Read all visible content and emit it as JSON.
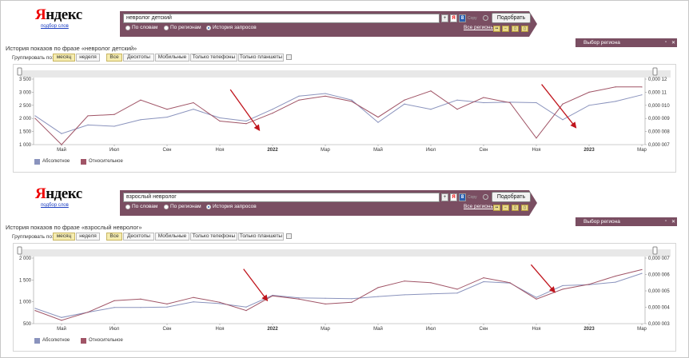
{
  "colors": {
    "absolute": "#8a93bd",
    "relative": "#a05466",
    "header": "#7a4e62",
    "arrow": "#c0141c"
  },
  "logo": {
    "first": "Я",
    "rest": "ндекс",
    "sub": "подбор слов"
  },
  "search": {
    "copy_label": "Copy",
    "submit_label": "Подобрать",
    "radios": [
      "По словам",
      "По регионам",
      "История запросов"
    ],
    "all_regions": "Все регионы"
  },
  "group": {
    "label": "Группировать по:",
    "period": [
      "месяц",
      "неделя"
    ],
    "devices": [
      "Все",
      "Десктопы",
      "Мобильные",
      "Только телефоны",
      "Только планшеты"
    ]
  },
  "region_box": {
    "title": "Выбор региона"
  },
  "legend": {
    "absolute": "Абсолютное",
    "relative": "Относительное"
  },
  "panels": [
    {
      "query": "невролог детский",
      "title": "История показов по фразе «невролог детский»"
    },
    {
      "query": "взрослый невролог",
      "title": "История показов по фразе «взрослый невролог»"
    }
  ],
  "chart_data": [
    {
      "type": "line",
      "title": "История показов по фразе «невролог детский»",
      "x_labels": [
        "Май",
        "Июл",
        "Сен",
        "Ноя",
        "2022",
        "Мар",
        "Май",
        "Июл",
        "Сен",
        "Ноя",
        "2023",
        "Мар"
      ],
      "y_left": {
        "ticks": [
          "3 500",
          "3 000",
          "2 500",
          "2 000",
          "1 500",
          "1 000"
        ],
        "range": [
          1000,
          3500
        ]
      },
      "y_right": {
        "ticks": [
          "0,000 12",
          "0,000 11",
          "0,000 010",
          "0,000 009",
          "0,000 008",
          "0,000 007"
        ],
        "range": [
          7e-06,
          1.2e-05
        ]
      },
      "series": [
        {
          "name": "Абсолютное",
          "axis": "left",
          "values": [
            2100,
            1420,
            1750,
            1700,
            1950,
            2050,
            2350,
            2020,
            1900,
            2350,
            2850,
            2950,
            2700,
            1850,
            2550,
            2350,
            2700,
            2600,
            2620,
            2600,
            1950,
            2500,
            2650,
            2900
          ]
        },
        {
          "name": "Относительное",
          "axis": "right",
          "values": [
            9e-06,
            7e-06,
            9.2e-06,
            9.3e-06,
            1.04e-05,
            9.7e-06,
            1.02e-05,
            8.8e-06,
            8.6e-06,
            9.4e-06,
            1.04e-05,
            1.07e-05,
            1.03e-05,
            9.1e-06,
            1.04e-05,
            1.11e-05,
            9.7e-06,
            1.06e-05,
            1.02e-05,
            7.5e-06,
            1.01e-05,
            1.1e-05,
            1.14e-05,
            1.14e-05
          ]
        }
      ],
      "arrows": [
        {
          "from": [
            7.4,
            3100
          ],
          "to": [
            8.5,
            1550
          ]
        },
        {
          "from": [
            19.2,
            3300
          ],
          "to": [
            20.5,
            1650
          ]
        }
      ],
      "legend_position": "bottom-left",
      "grid": false
    },
    {
      "type": "line",
      "title": "История показов по фразе «взрослый невролог»",
      "x_labels": [
        "Май",
        "Июл",
        "Сен",
        "Ноя",
        "2022",
        "Мар",
        "Май",
        "Июл",
        "Сен",
        "Ноя",
        "2023",
        "Мар"
      ],
      "y_left": {
        "ticks": [
          "2 000",
          "1 500",
          "1 000",
          "500"
        ],
        "range": [
          500,
          2000
        ]
      },
      "y_right": {
        "ticks": [
          "0,000 007",
          "0,000 006",
          "0,000 005",
          "0,000 004",
          "0,000 003"
        ],
        "range": [
          3e-06,
          7e-06
        ]
      },
      "series": [
        {
          "name": "Абсолютное",
          "axis": "left",
          "values": [
            850,
            640,
            760,
            870,
            870,
            880,
            1000,
            960,
            880,
            1150,
            1090,
            1080,
            1070,
            1120,
            1160,
            1180,
            1200,
            1460,
            1430,
            1100,
            1370,
            1390,
            1450,
            1650
          ]
        },
        {
          "name": "Относительное",
          "axis": "right",
          "values": [
            3.8e-06,
            3.2e-06,
            3.7e-06,
            4.4e-06,
            4.5e-06,
            4.2e-06,
            4.6e-06,
            4.3e-06,
            3.8e-06,
            4.7e-06,
            4.5e-06,
            4.2e-06,
            4.3e-06,
            5.2e-06,
            5.6e-06,
            5.5e-06,
            5.1e-06,
            5.8e-06,
            5.5e-06,
            4.5e-06,
            5.1e-06,
            5.4e-06,
            5.9e-06,
            6.3e-06
          ]
        }
      ],
      "arrows": [
        {
          "from": [
            7.9,
            1750
          ],
          "to": [
            8.8,
            1030
          ]
        },
        {
          "from": [
            18.8,
            1850
          ],
          "to": [
            19.7,
            1220
          ]
        }
      ],
      "legend_position": "bottom-left",
      "grid": false
    }
  ]
}
